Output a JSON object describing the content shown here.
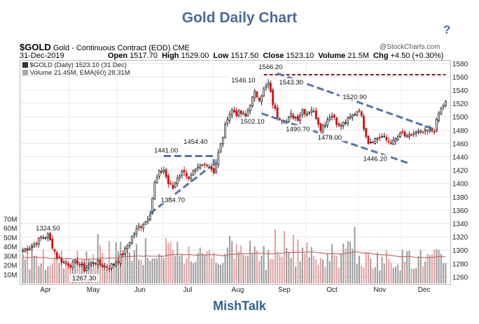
{
  "page": {
    "title": "Gold Daily Chart",
    "help_icon": "?",
    "footer": "MishTalk"
  },
  "header": {
    "symbol": "$GOLD",
    "description": "Gold - Continuous Contract (EOD)",
    "exchange": "CME",
    "watermark": "@StockCharts.com",
    "date": "31-Dec-2019",
    "open_label": "Open",
    "open": "1517.70",
    "high_label": "High",
    "high": "1529.00",
    "low_label": "Low",
    "low": "1517.50",
    "close_label": "Close",
    "close": "1523.10",
    "volume_label": "Volume",
    "volume": "21.5M",
    "chg_label": "Chg",
    "chg": "+4.50 (+0.30%)",
    "legend_price": "$GOLD (Daily) 1523.10 (31 Dec)",
    "legend_volume": "Volume 21.45M, EMA(60) 28.31M"
  },
  "colors": {
    "up": "#222222",
    "down": "#cc1111",
    "trend": "#5574a6",
    "resistance": "#8b1a1a",
    "volume_up": "#9c9c9c",
    "volume_down": "#e3a0a0",
    "ema": "#c06a6a",
    "title": "#4a6a99"
  },
  "chart_data": {
    "type": "candlestick",
    "title": "Gold Daily Chart",
    "ylim": [
      1250,
      1585
    ],
    "yticks": [
      1260,
      1280,
      1300,
      1320,
      1340,
      1360,
      1380,
      1400,
      1420,
      1440,
      1460,
      1480,
      1500,
      1520,
      1540,
      1560,
      1580
    ],
    "volume_ylim": [
      0,
      80
    ],
    "volume_ticks": [
      "10M",
      "20M",
      "30M",
      "40M",
      "50M",
      "60M",
      "70M"
    ],
    "months": [
      {
        "label": "Apr",
        "start": 0
      },
      {
        "label": "May",
        "start": 21
      },
      {
        "label": "Jun",
        "start": 42
      },
      {
        "label": "Jul",
        "start": 62
      },
      {
        "label": "Aug",
        "start": 84
      },
      {
        "label": "Sep",
        "start": 106
      },
      {
        "label": "Oct",
        "start": 125
      },
      {
        "label": "Nov",
        "start": 148
      },
      {
        "label": "Dec",
        "start": 167
      }
    ],
    "num_days": 187,
    "anchors": [
      {
        "d": 0,
        "v": 1300
      },
      {
        "d": 4,
        "v": 1306
      },
      {
        "d": 8,
        "v": 1318
      },
      {
        "d": 11,
        "v": 1322
      },
      {
        "d": 15,
        "v": 1290
      },
      {
        "d": 18,
        "v": 1282
      },
      {
        "d": 21,
        "v": 1278
      },
      {
        "d": 24,
        "v": 1283
      },
      {
        "d": 27,
        "v": 1271
      },
      {
        "d": 31,
        "v": 1283
      },
      {
        "d": 35,
        "v": 1277
      },
      {
        "d": 38,
        "v": 1275
      },
      {
        "d": 42,
        "v": 1285
      },
      {
        "d": 45,
        "v": 1300
      },
      {
        "d": 48,
        "v": 1320
      },
      {
        "d": 51,
        "v": 1335
      },
      {
        "d": 54,
        "v": 1343
      },
      {
        "d": 56,
        "v": 1357
      },
      {
        "d": 58,
        "v": 1400
      },
      {
        "d": 60,
        "v": 1416
      },
      {
        "d": 62,
        "v": 1420
      },
      {
        "d": 64,
        "v": 1400
      },
      {
        "d": 66,
        "v": 1393
      },
      {
        "d": 68,
        "v": 1410
      },
      {
        "d": 71,
        "v": 1420
      },
      {
        "d": 73,
        "v": 1405
      },
      {
        "d": 75,
        "v": 1415
      },
      {
        "d": 78,
        "v": 1425
      },
      {
        "d": 81,
        "v": 1430
      },
      {
        "d": 84,
        "v": 1418
      },
      {
        "d": 86,
        "v": 1445
      },
      {
        "d": 88,
        "v": 1470
      },
      {
        "d": 90,
        "v": 1500
      },
      {
        "d": 92,
        "v": 1510
      },
      {
        "d": 94,
        "v": 1505
      },
      {
        "d": 96,
        "v": 1505
      },
      {
        "d": 98,
        "v": 1500
      },
      {
        "d": 100,
        "v": 1520
      },
      {
        "d": 102,
        "v": 1535
      },
      {
        "d": 104,
        "v": 1528
      },
      {
        "d": 106,
        "v": 1540
      },
      {
        "d": 108,
        "v": 1550
      },
      {
        "d": 110,
        "v": 1520
      },
      {
        "d": 112,
        "v": 1500
      },
      {
        "d": 114,
        "v": 1498
      },
      {
        "d": 116,
        "v": 1492
      },
      {
        "d": 118,
        "v": 1502
      },
      {
        "d": 121,
        "v": 1498
      },
      {
        "d": 123,
        "v": 1510
      },
      {
        "d": 125,
        "v": 1505
      },
      {
        "d": 127,
        "v": 1512
      },
      {
        "d": 129,
        "v": 1500
      },
      {
        "d": 131,
        "v": 1483
      },
      {
        "d": 133,
        "v": 1490
      },
      {
        "d": 135,
        "v": 1502
      },
      {
        "d": 137,
        "v": 1500
      },
      {
        "d": 139,
        "v": 1485
      },
      {
        "d": 141,
        "v": 1490
      },
      {
        "d": 143,
        "v": 1495
      },
      {
        "d": 146,
        "v": 1505
      },
      {
        "d": 148,
        "v": 1512
      },
      {
        "d": 150,
        "v": 1485
      },
      {
        "d": 152,
        "v": 1462
      },
      {
        "d": 154,
        "v": 1465
      },
      {
        "d": 156,
        "v": 1468
      },
      {
        "d": 158,
        "v": 1470
      },
      {
        "d": 160,
        "v": 1465
      },
      {
        "d": 163,
        "v": 1462
      },
      {
        "d": 165,
        "v": 1470
      },
      {
        "d": 167,
        "v": 1475
      },
      {
        "d": 169,
        "v": 1468
      },
      {
        "d": 172,
        "v": 1475
      },
      {
        "d": 175,
        "v": 1476
      },
      {
        "d": 178,
        "v": 1478
      },
      {
        "d": 181,
        "v": 1480
      },
      {
        "d": 183,
        "v": 1505
      },
      {
        "d": 185,
        "v": 1518
      },
      {
        "d": 186,
        "v": 1523
      }
    ],
    "annotations": [
      {
        "label": "1324.50",
        "d": 11,
        "v": 1324.5,
        "pos": "above"
      },
      {
        "label": "1267.30",
        "d": 27,
        "v": 1267.3,
        "pos": "below"
      },
      {
        "label": "1384.70",
        "d": 66,
        "v": 1384.7,
        "pos": "below"
      },
      {
        "label": "1441.00",
        "d": 63,
        "v": 1441.0,
        "pos": "above"
      },
      {
        "label": "1454.40",
        "d": 76,
        "v": 1454.4,
        "pos": "above"
      },
      {
        "label": "1546.10",
        "d": 97,
        "v": 1546.1,
        "pos": "above"
      },
      {
        "label": "1502.10",
        "d": 101,
        "v": 1502.1,
        "pos": "below"
      },
      {
        "label": "1566.20",
        "d": 109,
        "v": 1566.2,
        "pos": "above"
      },
      {
        "label": "1543.30",
        "d": 118,
        "v": 1543.3,
        "pos": "above"
      },
      {
        "label": "1490.70",
        "d": 121,
        "v": 1490.7,
        "pos": "below"
      },
      {
        "label": "1478.00",
        "d": 135,
        "v": 1478.0,
        "pos": "below"
      },
      {
        "label": "1520.90",
        "d": 146,
        "v": 1520.9,
        "pos": "above"
      },
      {
        "label": "1446.20",
        "d": 155,
        "v": 1446.2,
        "pos": "below"
      }
    ],
    "trendlines": [
      {
        "name": "resistance-line",
        "d1": 106,
        "v1": 1563,
        "d2": 186,
        "v2": 1563,
        "kind": "resistance"
      },
      {
        "name": "channel-upper",
        "d1": 112,
        "v1": 1565,
        "d2": 182,
        "v2": 1480,
        "kind": "trend"
      },
      {
        "name": "channel-lower",
        "d1": 105,
        "v1": 1505,
        "d2": 170,
        "v2": 1430,
        "kind": "trend"
      },
      {
        "name": "flag-upper",
        "d1": 62,
        "v1": 1441,
        "d2": 84,
        "v2": 1441,
        "kind": "trend"
      },
      {
        "name": "flag-lower",
        "d1": 56,
        "v1": 1355,
        "d2": 82,
        "v2": 1424,
        "kind": "trend"
      },
      {
        "name": "flag-right",
        "d1": 84,
        "v1": 1426,
        "d2": 84,
        "v2": 1441,
        "kind": "trend"
      }
    ]
  }
}
